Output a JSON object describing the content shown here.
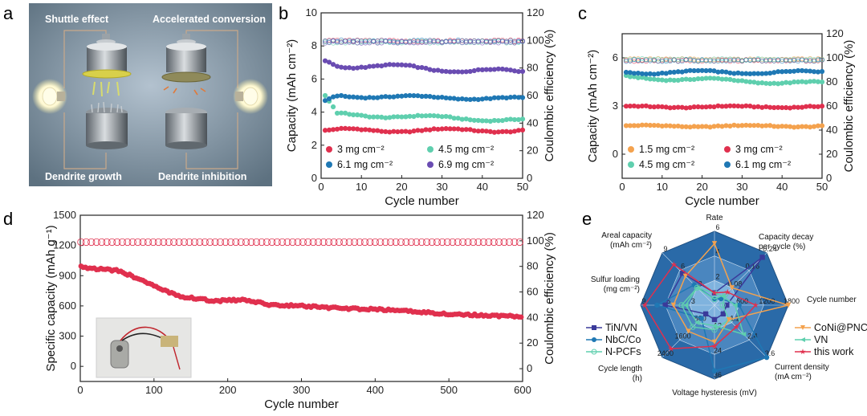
{
  "panel_letters": {
    "a": "a",
    "b": "b",
    "c": "c",
    "d": "d",
    "e": "e"
  },
  "illustration": {
    "label_top_left": "Shuttle effect",
    "label_top_right": "Accelerated conversion",
    "label_bottom_left": "Dendrite growth",
    "label_bottom_right": "Dendrite inhibition"
  },
  "colors": {
    "red": "#e0304e",
    "teal": "#5fcfae",
    "blue": "#1f78b4",
    "purple": "#6a4cb2",
    "orange": "#f4a24e",
    "darkblue": "#3a3a9a",
    "radar_bg": "#2a6aa8"
  },
  "chart_data": [
    {
      "id": "b",
      "type": "scatter",
      "xlabel": "Cycle number",
      "ylabel": "Capacity (mAh cm⁻²)",
      "y2label": "Coulombic efficiency (%)",
      "xlim": [
        0,
        50
      ],
      "ylim": [
        0,
        10
      ],
      "y2lim": [
        0,
        120
      ],
      "xticks": [
        "0",
        "10",
        "20",
        "30",
        "40",
        "50"
      ],
      "yticks": [
        "0",
        "2",
        "4",
        "6",
        "8",
        "10"
      ],
      "y2ticks": [
        "0",
        "20",
        "40",
        "60",
        "80",
        "100",
        "120"
      ],
      "series": [
        {
          "name": "3 mg cm⁻²",
          "color": "red",
          "start": [
            1,
            2.9
          ],
          "level": 2.9,
          "wave": 0.1
        },
        {
          "name": "4.5 mg cm⁻²",
          "color": "teal",
          "start": [
            2,
            5.0
          ],
          "level": 3.9,
          "wave": 0.1,
          "end": 3.5
        },
        {
          "name": "6.1 mg cm⁻²",
          "color": "blue",
          "start": [
            1,
            4.7
          ],
          "level": 5.0,
          "wave": 0.08,
          "end": 4.8
        },
        {
          "name": "6.9 mg cm⁻²",
          "color": "purple",
          "start": [
            1,
            7.1
          ],
          "level": 6.9,
          "wave": 0.15,
          "end": 6.4
        }
      ],
      "ce_level": 99
    },
    {
      "id": "c",
      "type": "scatter",
      "xlabel": "Cycle number",
      "ylabel": "Capacity (mAh cm⁻²)",
      "y2label": "Coulombic efficiency (%)",
      "xlim": [
        0,
        50
      ],
      "ylim": [
        -1.5,
        7.5
      ],
      "y2lim": [
        0,
        120
      ],
      "xticks": [
        "0",
        "10",
        "20",
        "30",
        "40",
        "50"
      ],
      "yticks": [
        "0",
        "3",
        "6"
      ],
      "y2ticks": [
        "0",
        "20",
        "40",
        "60",
        "80",
        "100",
        "120"
      ],
      "series": [
        {
          "name": "1.5 mg cm⁻²",
          "color": "orange",
          "level": 1.75,
          "wave": 0.05
        },
        {
          "name": "3 mg cm⁻²",
          "color": "red",
          "level": 2.95,
          "wave": 0.05
        },
        {
          "name": "4.5 mg cm⁻²",
          "color": "teal",
          "level": 4.8,
          "wave": 0.1,
          "end": 4.4
        },
        {
          "name": "6.1 mg cm⁻²",
          "color": "blue",
          "level": 5.1,
          "wave": 0.1,
          "end": 5.1
        }
      ],
      "ce_level": 98
    },
    {
      "id": "d",
      "type": "scatter",
      "xlabel": "Cycle number",
      "ylabel": "Specific capacity (mAh g⁻¹)",
      "y2label": "Coulombic efficiency (%)",
      "xlim": [
        0,
        600
      ],
      "ylim": [
        -150,
        1500
      ],
      "y2lim": [
        -10,
        120
      ],
      "xticks": [
        "0",
        "100",
        "200",
        "300",
        "400",
        "500",
        "600"
      ],
      "yticks": [
        "0",
        "300",
        "600",
        "900",
        "1200",
        "1500"
      ],
      "y2ticks": [
        "0",
        "20",
        "40",
        "60",
        "80",
        "100",
        "120"
      ],
      "capacity_points": [
        [
          1,
          990
        ],
        [
          20,
          970
        ],
        [
          50,
          950
        ],
        [
          80,
          870
        ],
        [
          110,
          760
        ],
        [
          140,
          690
        ],
        [
          180,
          650
        ],
        [
          220,
          660
        ],
        [
          260,
          610
        ],
        [
          300,
          600
        ],
        [
          340,
          580
        ],
        [
          380,
          570
        ],
        [
          420,
          560
        ],
        [
          460,
          540
        ],
        [
          500,
          520
        ],
        [
          550,
          505
        ],
        [
          600,
          495
        ]
      ],
      "ce_level": 99
    },
    {
      "id": "e",
      "type": "radar",
      "axes": [
        {
          "label": "Rate",
          "ticks": [
            "2",
            "4",
            "6"
          ]
        },
        {
          "label": "Capacity decay per cycle (%)",
          "ticks": [
            "0.08",
            "0.16",
            "0.24"
          ]
        },
        {
          "label": "Cycle number",
          "ticks": [
            "600",
            "1200",
            "1800"
          ]
        },
        {
          "label": "Current density (mA cm⁻²)",
          "ticks": [
            "1.2",
            "2.4",
            "3.6"
          ]
        },
        {
          "label": "Voltage hysteresis (mV)",
          "ticks": [
            "12",
            "24",
            "36"
          ]
        },
        {
          "label": "Cycle length (h)",
          "ticks": [
            "800",
            "1600",
            "2400"
          ]
        },
        {
          "label": "Sulfur loading (mg cm⁻²)",
          "ticks": [
            "3",
            "6",
            "9"
          ]
        },
        {
          "label": "Areal capacity (mAh cm⁻²)",
          "ticks": [
            "3",
            "6",
            "9"
          ]
        }
      ],
      "series": [
        {
          "name": "TiN/VN",
          "color": "darkblue",
          "marker": "square",
          "values": [
            1,
            0.22,
            300,
            0.6,
            7,
            400,
            6,
            5.5
          ]
        },
        {
          "name": "NbC/Co",
          "color": "blue",
          "marker": "circle",
          "values": [
            0.5,
            0.03,
            600,
            3.6,
            32,
            600,
            7,
            3.5
          ]
        },
        {
          "name": "N-PCFs",
          "color": "teal",
          "marker": "circle-open",
          "values": [
            0.5,
            0.05,
            200,
            1.0,
            12,
            1000,
            4,
            3
          ]
        },
        {
          "name": "CoNi@PNCFs",
          "color": "orange",
          "marker": "triangle-down",
          "values": [
            5,
            0.08,
            1800,
            1.0,
            18,
            1200,
            5,
            5
          ]
        },
        {
          "name": "VN",
          "color": "teal",
          "marker": "triangle-left",
          "values": [
            1,
            0.04,
            500,
            2.0,
            10,
            800,
            3.5,
            3
          ]
        },
        {
          "name": "this work",
          "color": "red",
          "marker": "star",
          "values": [
            1,
            0.06,
            1000,
            1.5,
            20,
            2000,
            8.5,
            7
          ]
        }
      ],
      "legend_left": [
        "TiN/VN",
        "NbC/Co",
        "N-PCFs"
      ],
      "legend_right": [
        "CoNi@PNCFs",
        "VN",
        "this work"
      ]
    }
  ]
}
